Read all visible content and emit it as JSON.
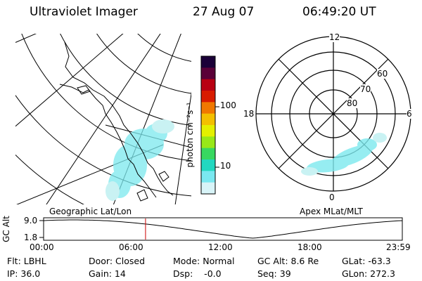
{
  "header": {
    "instrument": "Ultraviolet Imager",
    "date": "27 Aug 07",
    "time": "06:49:20 UT"
  },
  "geo_panel": {
    "label": "Geographic Lat/Lon"
  },
  "polar_panel": {
    "label": "Apex  MLat/MLT",
    "mlt_labels": {
      "top": "12",
      "left": "18",
      "right": "6",
      "bottom": "0"
    },
    "lat_labels": [
      "60",
      "70",
      "80"
    ]
  },
  "colorbar": {
    "unit_label": "photon cm⁻²s⁻¹",
    "ticks": [
      "100",
      "10"
    ],
    "colors_top_to_bottom": [
      "#1a0038",
      "#5a0038",
      "#b80012",
      "#d81c00",
      "#f07800",
      "#f3c000",
      "#e4f000",
      "#98e818",
      "#38d860",
      "#22d8c0",
      "#7ae8f0",
      "#d8f4f8"
    ]
  },
  "altitude_plot": {
    "ylabel": "GC Alt",
    "yticks": [
      "9.0",
      "1.8"
    ],
    "xticks": [
      "00:00",
      "06:00",
      "12:00",
      "18:00",
      "23:59"
    ],
    "marker_hour": 6.82,
    "marker_color": "#cc0000"
  },
  "status": {
    "filter": "Flt: LBHL",
    "ip": "IP: 36.0",
    "door": "Door: Closed",
    "gain": "Gain: 14",
    "mode": "Mode: Normal",
    "dsp": "Dsp:    -0.0",
    "gc_alt": "GC Alt: 8.6 Re",
    "seq": "Seq: 39",
    "glat": "GLat: -63.3",
    "glon": "GLon: 272.3"
  }
}
